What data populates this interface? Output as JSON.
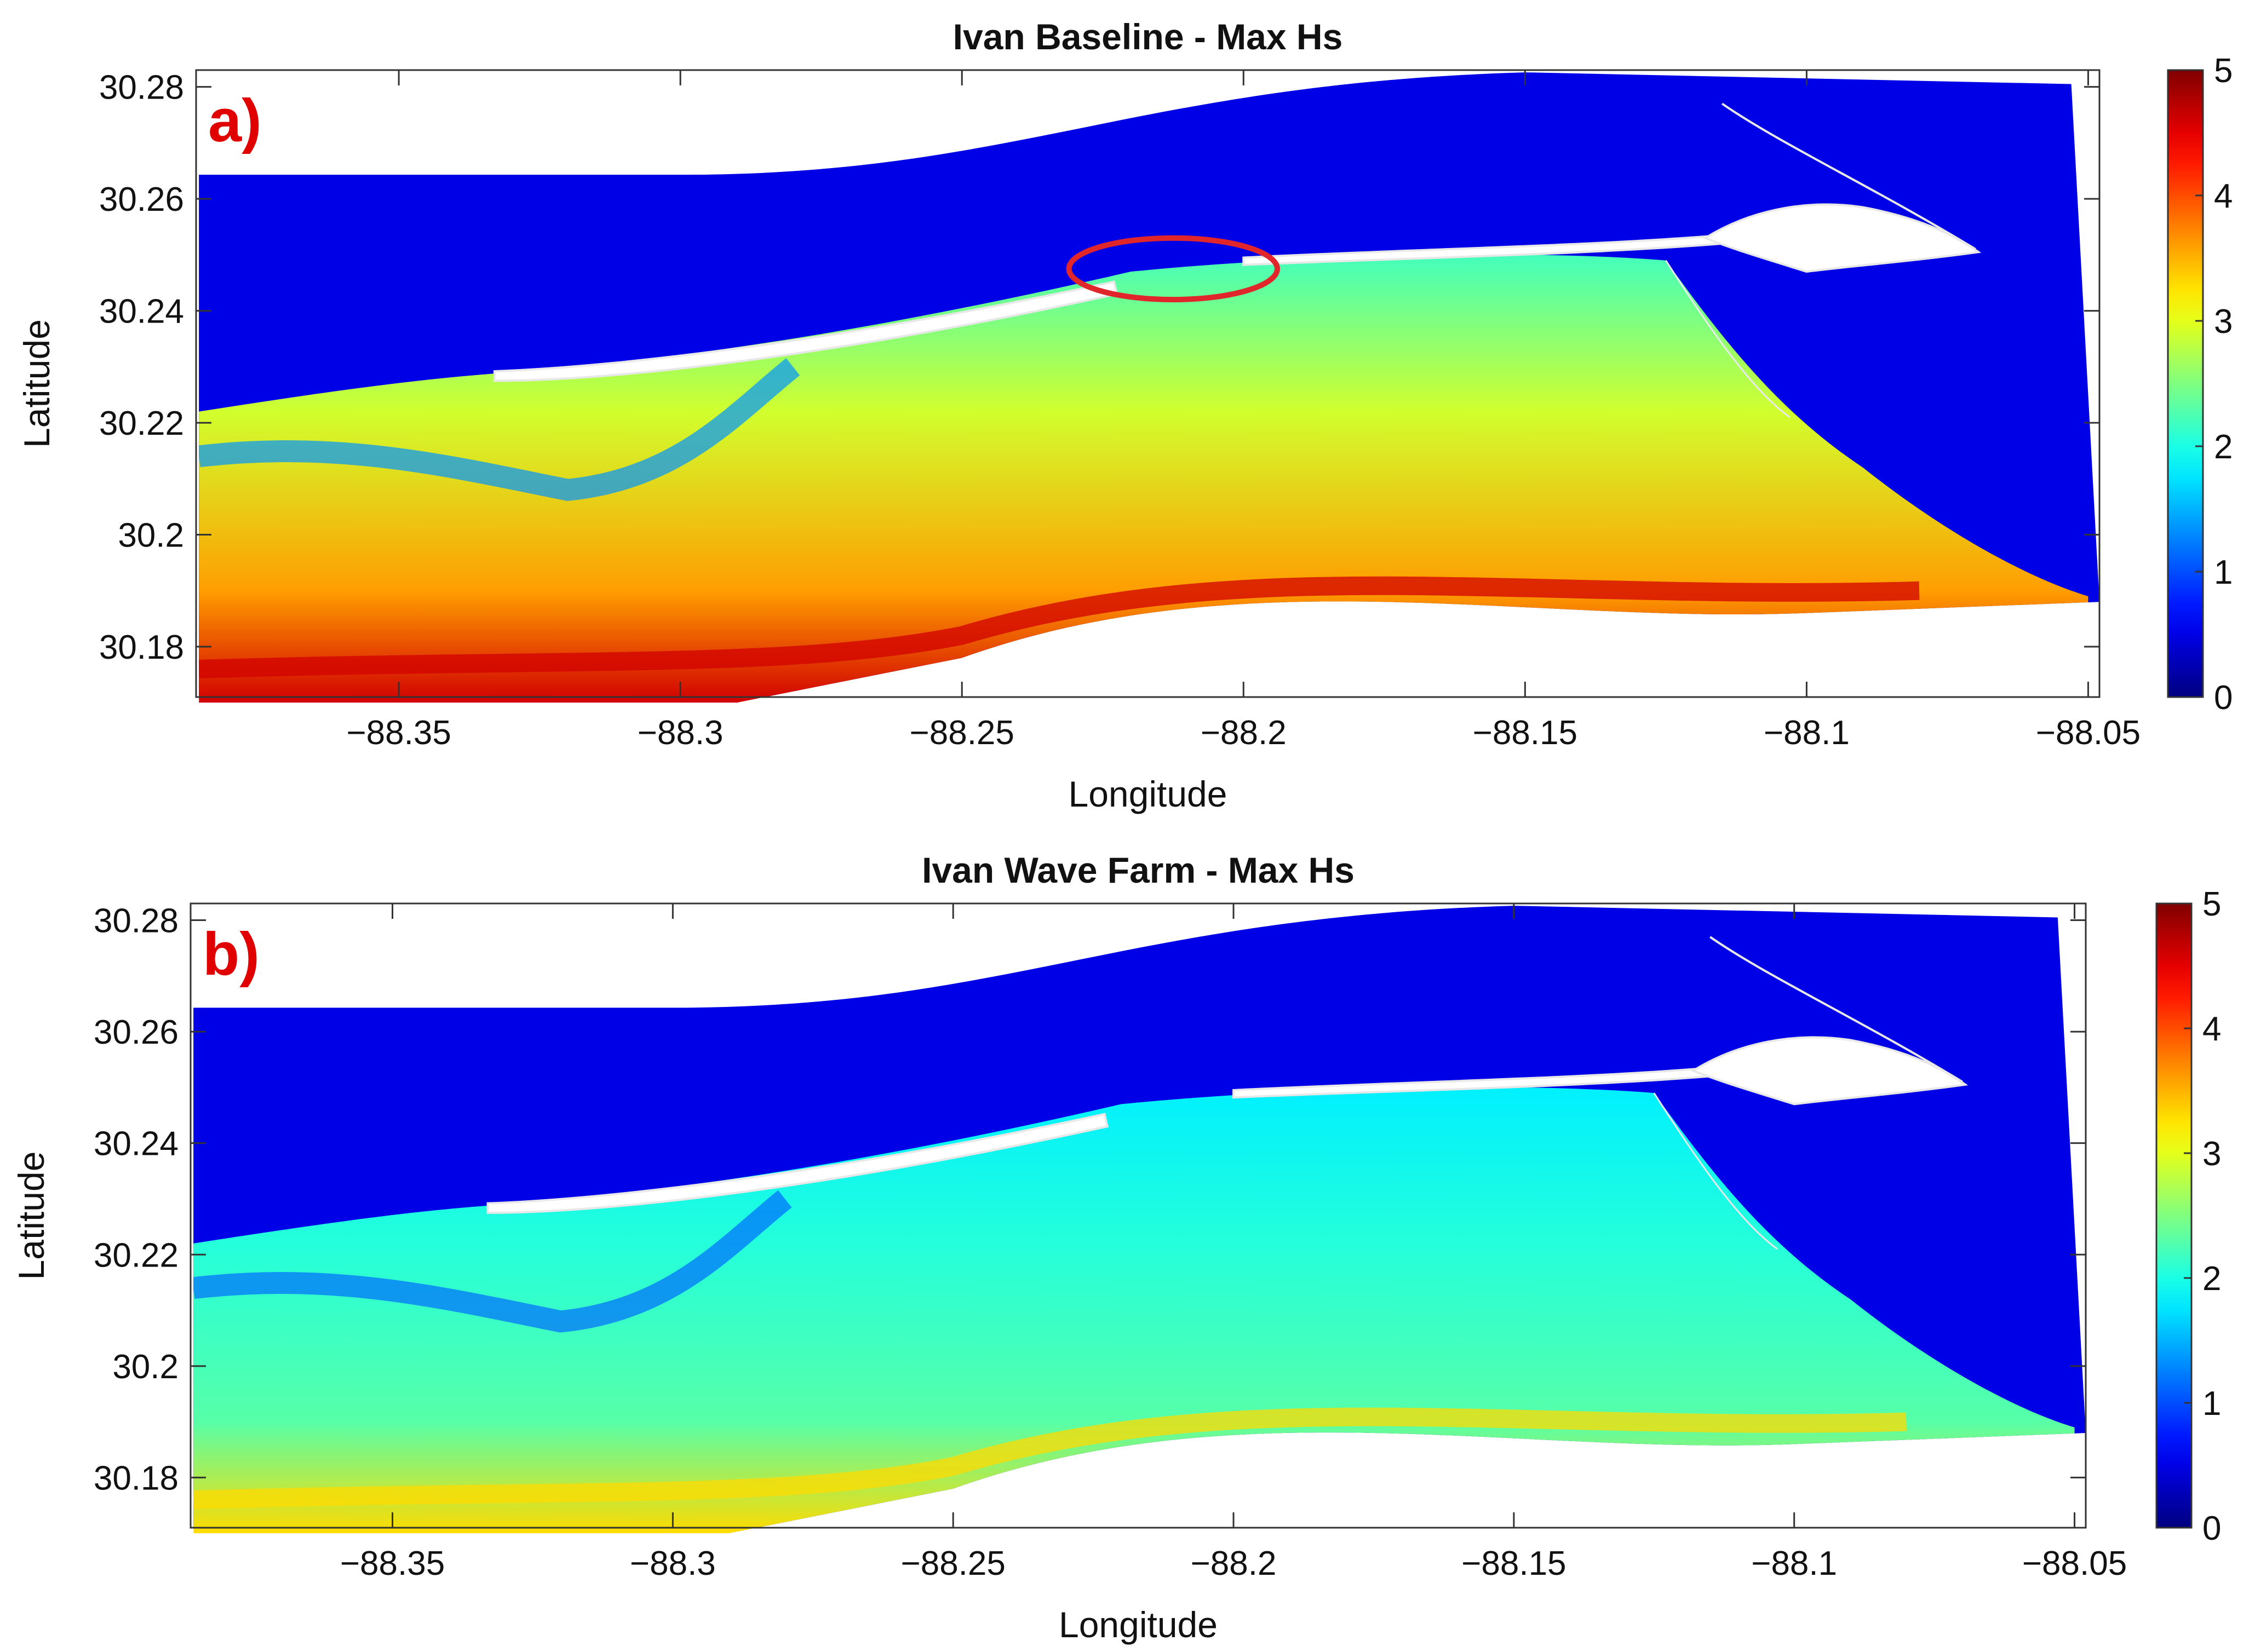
{
  "chart_data": [
    {
      "type": "heatmap",
      "panel_label": "a)",
      "title": "Ivan Baseline - Max Hs",
      "xlabel": "Longitude",
      "ylabel": "Latitude",
      "xlim": [
        -88.386,
        -88.048
      ],
      "ylim": [
        30.171,
        30.283
      ],
      "xticks": [
        -88.35,
        -88.3,
        -88.25,
        -88.2,
        -88.15,
        -88.1,
        -88.05
      ],
      "xtick_labels": [
        "−88.35",
        "−88.3",
        "−88.25",
        "−88.2",
        "−88.15",
        "−88.1",
        "−88.05"
      ],
      "yticks": [
        30.18,
        30.2,
        30.22,
        30.24,
        30.26,
        30.28
      ],
      "ytick_labels": [
        "30.18",
        "30.2",
        "30.22",
        "30.24",
        "30.26",
        "30.28"
      ],
      "colorbar": {
        "min": 0,
        "max": 5,
        "ticks": [
          0,
          1,
          2,
          3,
          4,
          5
        ],
        "tick_labels": [
          "0",
          "1",
          "2",
          "3",
          "4",
          "5"
        ],
        "colormap": "jet"
      },
      "field_levels": {
        "north_of_island": 0.5,
        "inner_bay": 2.2,
        "offshore_south": 3.6,
        "southern_peak": 4.6
      },
      "annotation": "red ellipse highlighting gap near -88.21, 30.248"
    },
    {
      "type": "heatmap",
      "panel_label": "b)",
      "title": "Ivan Wave Farm - Max Hs",
      "xlabel": "Longitude",
      "ylabel": "Latitude",
      "xlim": [
        -88.386,
        -88.048
      ],
      "ylim": [
        30.171,
        30.283
      ],
      "xticks": [
        -88.35,
        -88.3,
        -88.25,
        -88.2,
        -88.15,
        -88.1,
        -88.05
      ],
      "xtick_labels": [
        "−88.35",
        "−88.3",
        "−88.25",
        "−88.2",
        "−88.15",
        "−88.1",
        "−88.05"
      ],
      "yticks": [
        30.18,
        30.2,
        30.22,
        30.24,
        30.26,
        30.28
      ],
      "ytick_labels": [
        "30.18",
        "30.2",
        "30.22",
        "30.24",
        "30.26",
        "30.28"
      ],
      "colorbar": {
        "min": 0,
        "max": 5,
        "ticks": [
          0,
          1,
          2,
          3,
          4,
          5
        ],
        "tick_labels": [
          "0",
          "1",
          "2",
          "3",
          "4",
          "5"
        ],
        "colormap": "jet"
      },
      "field_levels": {
        "north_of_island": 0.5,
        "inner_bay": 1.8,
        "offshore_south": 2.3,
        "southern_peak": 3.3
      }
    }
  ]
}
